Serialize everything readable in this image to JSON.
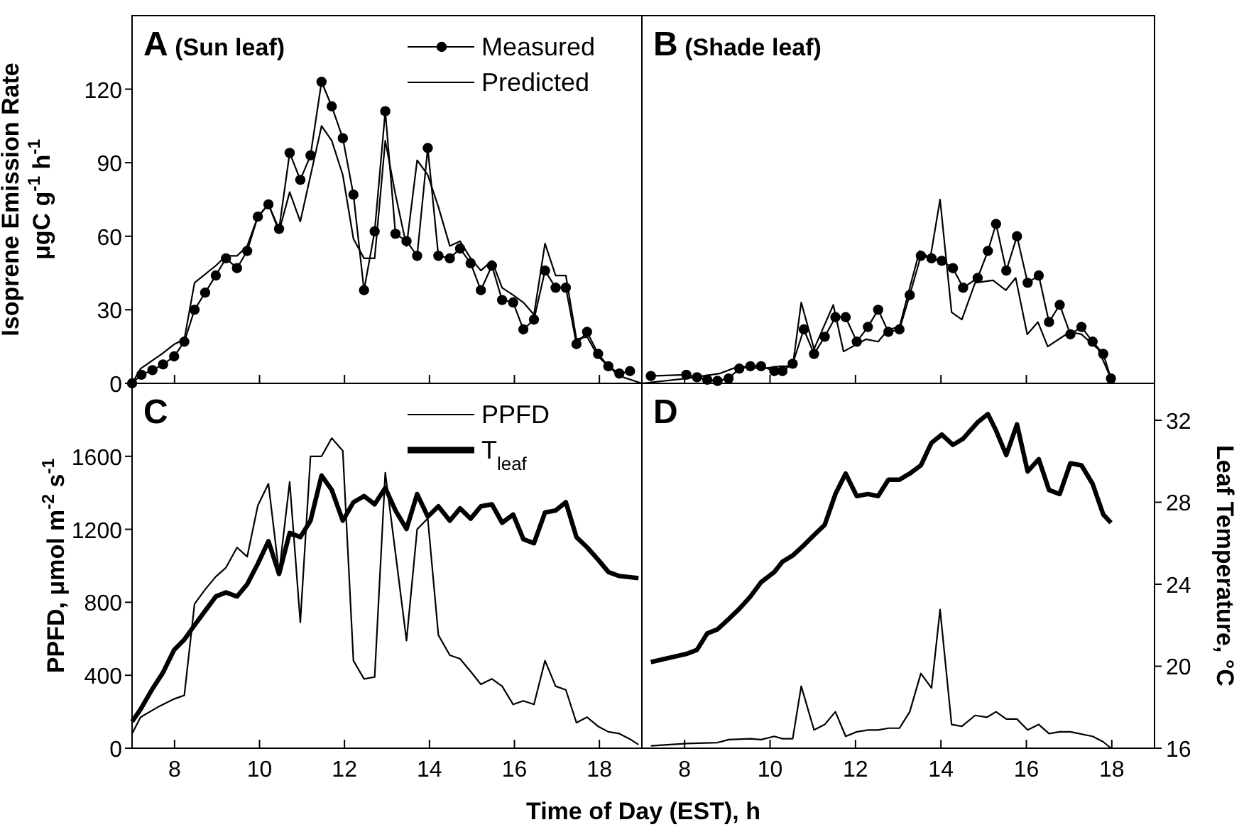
{
  "chart_data": [
    {
      "type": "line",
      "title": "A (Sun leaf)",
      "ylabel": "Isoprene Emission Rate\nμgC g$^{-1}$ h$^{-1}$",
      "xlim": [
        7,
        19
      ],
      "xticks": [
        {
          "value": 8,
          "label": null
        },
        {
          "value": 10,
          "label": null
        },
        {
          "value": 12,
          "label": null
        },
        {
          "value": 14,
          "label": null
        },
        {
          "value": 16,
          "label": null
        },
        {
          "value": 18,
          "label": null
        }
      ],
      "ylim": [
        0,
        150
      ],
      "yticks": [
        0,
        30,
        60,
        90,
        120
      ],
      "tick_labels": "y",
      "legend": "top right",
      "grid": false,
      "series": [
        {
          "name": "Measured",
          "color": "#000000",
          "marker": "circle",
          "x": [
            7.0,
            7.22,
            7.48,
            7.73,
            7.99,
            8.23,
            8.47,
            8.72,
            8.97,
            9.21,
            9.47,
            9.71,
            9.96,
            10.21,
            10.46,
            10.71,
            10.96,
            11.2,
            11.46,
            11.7,
            11.96,
            12.21,
            12.46,
            12.71,
            12.96,
            13.2,
            13.46,
            13.71,
            13.96,
            14.21,
            14.48,
            14.72,
            14.97,
            15.21,
            15.47,
            15.71,
            15.97,
            16.21,
            16.46,
            16.72,
            16.97,
            17.21,
            17.46,
            17.71,
            17.97,
            18.21,
            18.47,
            18.72
          ],
          "values": [
            0,
            3.5,
            5.4,
            7.7,
            11,
            17,
            30,
            37,
            44,
            51,
            47,
            54,
            68,
            73,
            63,
            94,
            83,
            93,
            123,
            113,
            100,
            77,
            38,
            62,
            111,
            61,
            58,
            52,
            96,
            52,
            51,
            55,
            49,
            38,
            48,
            34,
            33,
            22,
            26,
            46,
            39,
            39,
            16,
            21,
            12,
            7,
            4,
            5
          ]
        },
        {
          "name": "Predicted",
          "color": "#000000",
          "marker": "none",
          "x": [
            7.0,
            7.2,
            7.7,
            8.0,
            8.23,
            8.47,
            8.97,
            9.21,
            9.47,
            9.71,
            9.96,
            10.21,
            10.46,
            10.71,
            10.96,
            11.46,
            11.7,
            11.96,
            12.21,
            12.46,
            12.71,
            12.96,
            13.2,
            13.46,
            13.71,
            13.96,
            14.21,
            14.48,
            14.72,
            14.97,
            15.21,
            15.47,
            15.71,
            15.97,
            16.21,
            16.46,
            16.72,
            16.97,
            17.21,
            17.46,
            17.71,
            17.97,
            18.21,
            18.47,
            19.0
          ],
          "values": [
            0,
            6,
            12,
            16,
            18,
            41,
            48,
            52,
            52,
            56,
            68,
            73,
            62,
            78,
            66,
            105,
            99,
            85,
            59,
            51,
            51,
            99,
            77,
            56,
            91,
            85,
            72,
            56,
            58,
            51,
            46,
            50,
            39,
            36,
            33,
            28,
            57,
            44,
            44,
            18,
            19,
            11,
            7,
            3,
            0
          ]
        }
      ]
    },
    {
      "type": "line",
      "title": "B (Shade leaf)",
      "xlim": [
        7,
        19
      ],
      "xticks": [
        {
          "value": 8,
          "label": null
        },
        {
          "value": 10,
          "label": null
        },
        {
          "value": 12,
          "label": null
        },
        {
          "value": 14,
          "label": null
        },
        {
          "value": 16,
          "label": null
        },
        {
          "value": 18,
          "label": null
        }
      ],
      "ylim": [
        0,
        150
      ],
      "tick_labels": false,
      "grid": false,
      "series": [
        {
          "color": "#000000",
          "marker": "circle",
          "x": [
            7.21,
            8.04,
            8.29,
            8.53,
            8.77,
            9.03,
            9.28,
            9.54,
            9.79,
            10.1,
            10.29,
            10.53,
            10.79,
            11.03,
            11.28,
            11.53,
            11.77,
            12.03,
            12.29,
            12.53,
            12.77,
            13.03,
            13.27,
            13.53,
            13.78,
            14.02,
            14.28,
            14.52,
            14.86,
            15.1,
            15.29,
            15.53,
            15.78,
            16.03,
            16.29,
            16.53,
            16.78,
            17.03,
            17.29,
            17.55,
            17.8,
            17.98
          ],
          "values": [
            3,
            3.5,
            2.5,
            1.5,
            1,
            2,
            6,
            7,
            7,
            5,
            5,
            8,
            22,
            12,
            19,
            27,
            27,
            17,
            23,
            30,
            21,
            22,
            36,
            52,
            51,
            50,
            47,
            39,
            43,
            54,
            65,
            46,
            60,
            41,
            44,
            25,
            32,
            20,
            23,
            17,
            12,
            2
          ]
        },
        {
          "color": "#000000",
          "marker": "none",
          "x": [
            7.0,
            8.04,
            8.82,
            9.28,
            9.79,
            10.26,
            10.53,
            10.73,
            11.03,
            11.48,
            11.72,
            12.25,
            12.53,
            12.77,
            13.03,
            13.27,
            13.5,
            13.75,
            13.98,
            14.25,
            14.49,
            14.8,
            15.22,
            15.52,
            15.75,
            16.02,
            16.27,
            16.5,
            17.02,
            17.29,
            17.68,
            17.98
          ],
          "values": [
            0,
            2,
            4,
            7,
            6,
            7,
            7,
            33,
            14,
            32,
            13,
            18,
            17,
            22,
            23,
            39,
            54,
            51,
            75,
            29,
            26,
            41,
            42,
            38,
            43,
            20,
            25,
            15,
            21,
            20,
            14,
            2
          ]
        }
      ]
    },
    {
      "type": "line",
      "title": "C",
      "xlabel": "Time of Day (EST), h",
      "ylabel": "PPFD, μmol m$^{-2}$ s$^{-1}$",
      "xlim": [
        7,
        19
      ],
      "xticks": [
        8,
        10,
        12,
        14,
        16,
        18
      ],
      "ylim": [
        0,
        2000
      ],
      "yticks": [
        0,
        400,
        800,
        1200,
        1600
      ],
      "y2lim": [
        16,
        33.8
      ],
      "legend": "top right",
      "grid": false,
      "series": [
        {
          "name": "PPFD",
          "color": "#000000",
          "marker": "none",
          "x": [
            7.0,
            7.2,
            7.64,
            7.99,
            8.23,
            8.47,
            8.72,
            8.97,
            9.21,
            9.47,
            9.71,
            9.96,
            10.21,
            10.46,
            10.71,
            10.96,
            11.2,
            11.46,
            11.7,
            11.96,
            12.21,
            12.46,
            12.71,
            12.96,
            13.2,
            13.46,
            13.71,
            13.96,
            14.21,
            14.48,
            14.72,
            14.97,
            15.21,
            15.47,
            15.71,
            15.97,
            16.21,
            16.46,
            16.72,
            16.97,
            17.21,
            17.46,
            17.71,
            17.97,
            18.21,
            18.47,
            18.72,
            18.92
          ],
          "values": [
            80,
            170,
            230,
            270,
            290,
            790,
            870,
            940,
            990,
            1100,
            1050,
            1330,
            1450,
            960,
            1460,
            690,
            1600,
            1600,
            1700,
            1630,
            480,
            380,
            390,
            1510,
            1070,
            590,
            1200,
            1260,
            620,
            510,
            490,
            420,
            350,
            380,
            340,
            240,
            260,
            240,
            480,
            340,
            320,
            140,
            170,
            120,
            90,
            80,
            50,
            20
          ]
        },
        {
          "name": "T$_{leaf}$",
          "color": "#000000",
          "marker": "none",
          "axis": "y2",
          "x": [
            7.0,
            7.2,
            7.48,
            7.73,
            7.99,
            8.23,
            8.47,
            8.72,
            8.97,
            9.21,
            9.47,
            9.71,
            9.96,
            10.21,
            10.46,
            10.71,
            10.96,
            11.2,
            11.46,
            11.7,
            11.96,
            12.21,
            12.46,
            12.71,
            12.96,
            13.2,
            13.46,
            13.71,
            13.96,
            14.21,
            14.48,
            14.72,
            14.97,
            15.21,
            15.47,
            15.71,
            15.97,
            16.21,
            16.46,
            16.72,
            16.97,
            17.21,
            17.46,
            17.71,
            17.97,
            18.21,
            18.47,
            18.92
          ],
          "values": [
            17.3,
            17.9,
            18.9,
            19.7,
            20.8,
            21.3,
            22,
            22.7,
            23.4,
            23.6,
            23.4,
            24,
            25,
            26.1,
            24.5,
            26.5,
            26.3,
            27.1,
            29.3,
            28.6,
            27.1,
            28,
            28.3,
            27.9,
            28.7,
            27.6,
            26.7,
            28.4,
            27.3,
            27.8,
            27.1,
            27.7,
            27.2,
            27.8,
            27.9,
            27,
            27.4,
            26.2,
            26,
            27.5,
            27.6,
            28,
            26.3,
            25.8,
            25.2,
            24.6,
            24.4,
            24.3
          ]
        }
      ]
    },
    {
      "type": "line",
      "title": "D",
      "y2label": "Leaf Temperature, °C",
      "xlim": [
        7,
        19
      ],
      "xticks": [
        8,
        10,
        12,
        14,
        16,
        18
      ],
      "ylim": [
        0,
        2000
      ],
      "y2lim": [
        16,
        33.8
      ],
      "y2ticks": [
        16,
        20,
        24,
        28,
        32
      ],
      "grid": false,
      "series": [
        {
          "color": "#000000",
          "marker": "none",
          "x": [
            7.21,
            8.04,
            8.77,
            9.03,
            9.54,
            9.79,
            10.1,
            10.29,
            10.53,
            10.73,
            11.03,
            11.28,
            11.53,
            11.77,
            12.03,
            12.29,
            12.53,
            12.77,
            13.03,
            13.27,
            13.53,
            13.78,
            13.98,
            14.25,
            14.49,
            14.8,
            15.08,
            15.29,
            15.53,
            15.78,
            16.03,
            16.29,
            16.53,
            16.78,
            17.03,
            17.55,
            17.8,
            17.98
          ],
          "values": [
            13,
            26,
            31,
            47,
            52,
            47,
            65,
            52,
            52,
            340,
            100,
            130,
            200,
            65,
            90,
            100,
            100,
            110,
            110,
            200,
            410,
            330,
            760,
            130,
            120,
            180,
            170,
            200,
            160,
            160,
            100,
            130,
            80,
            90,
            90,
            65,
            35,
            0
          ]
        },
        {
          "color": "#000000",
          "marker": "none",
          "axis": "y2",
          "x": [
            7.21,
            8.04,
            8.29,
            8.53,
            8.77,
            9.03,
            9.28,
            9.54,
            9.79,
            10.1,
            10.29,
            10.53,
            10.79,
            11.03,
            11.28,
            11.53,
            11.77,
            12.03,
            12.29,
            12.53,
            12.77,
            13.03,
            13.27,
            13.53,
            13.78,
            14.02,
            14.28,
            14.52,
            14.86,
            15.1,
            15.29,
            15.53,
            15.78,
            16.03,
            16.29,
            16.53,
            16.78,
            17.03,
            17.29,
            17.55,
            17.8,
            17.98
          ],
          "values": [
            20.2,
            20.6,
            20.8,
            21.6,
            21.8,
            22.3,
            22.8,
            23.4,
            24.1,
            24.6,
            25.1,
            25.4,
            25.9,
            26.4,
            26.9,
            28.4,
            29.4,
            28.3,
            28.4,
            28.3,
            29.1,
            29.1,
            29.4,
            29.8,
            30.9,
            31.3,
            30.8,
            31.1,
            31.9,
            32.3,
            31.5,
            30.3,
            31.8,
            29.5,
            30.1,
            28.6,
            28.4,
            29.9,
            29.8,
            28.9,
            27.4,
            27
          ]
        }
      ]
    }
  ]
}
